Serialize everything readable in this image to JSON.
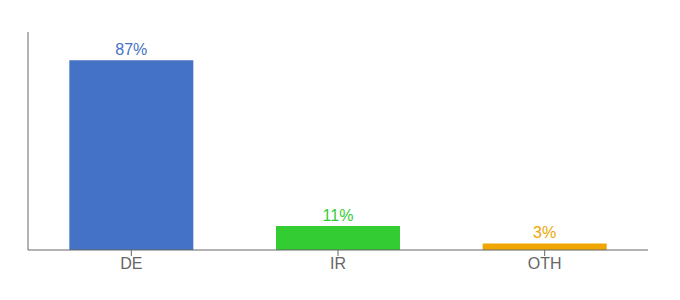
{
  "chart_data": {
    "type": "bar",
    "categories": [
      "DE",
      "IR",
      "OTH"
    ],
    "values": [
      87,
      11,
      3
    ],
    "value_labels": [
      "87%",
      "11%",
      "3%"
    ],
    "data_labels": true,
    "colors": [
      "#4472c4",
      "#33cc33",
      "#f0a500"
    ],
    "ylim": [
      0,
      100
    ],
    "tick_labels": "x",
    "grid": false
  }
}
